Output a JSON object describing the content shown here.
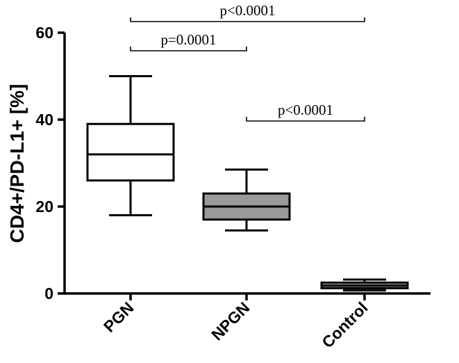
{
  "chart_data": {
    "type": "box",
    "ylabel": "CD4+/PD-L1+ [%]",
    "ylim": [
      0,
      60
    ],
    "yticks": [
      0,
      20,
      40,
      60
    ],
    "categories": [
      "PGN",
      "NPGN",
      "Control"
    ],
    "boxes": [
      {
        "category": "PGN",
        "min": 18,
        "q1": 26,
        "median": 32,
        "q3": 39,
        "max": 50,
        "fill": "#ffffff"
      },
      {
        "category": "NPGN",
        "min": 14.5,
        "q1": 17,
        "median": 20,
        "q3": 23,
        "max": 28.5,
        "fill": "#999999"
      },
      {
        "category": "Control",
        "min": 0.7,
        "q1": 1.2,
        "median": 1.8,
        "q3": 2.5,
        "max": 3.2,
        "fill": "#999999"
      }
    ],
    "significance": [
      {
        "from": "PGN",
        "to": "NPGN",
        "label": "p=0.0001"
      },
      {
        "from": "PGN",
        "to": "Control",
        "label": "p<0.0001"
      },
      {
        "from": "NPGN",
        "to": "Control",
        "label": "p<0.0001"
      }
    ]
  }
}
